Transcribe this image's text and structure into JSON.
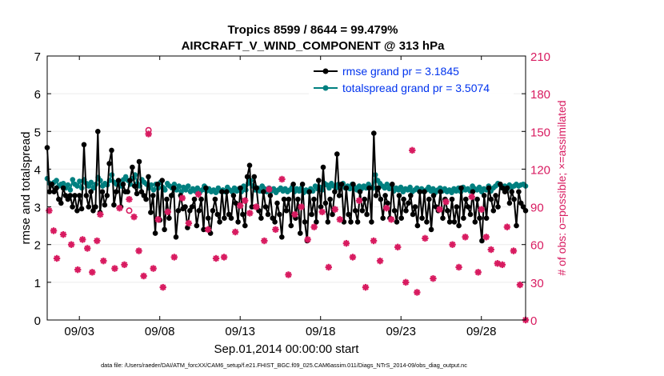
{
  "chart_data": {
    "type": "line",
    "title_line1": "Tropics 8599 / 8644 = 99.479%",
    "title_line2": "AIRCRAFT_V_WIND_COMPONENT @ 313 hPa",
    "xlabel": "Sep.01,2014 00:00:00 start",
    "ylabel_left": "rmse and totalspread",
    "ylabel_right": "# of obs: o=possible; ×=assimilated",
    "footer": "data file: /Users/raeder/DAI/ATM_forcXX/CAM6_setup/f.e21.FHIST_BGC.f09_025.CAM6assim.011/Diags_NTrS_2014-09/obs_diag_output.nc",
    "xlim": [
      1.0,
      30.75
    ],
    "ylim_left": [
      0,
      7
    ],
    "ylim_right": [
      0,
      210
    ],
    "xticks": [
      3,
      8,
      13,
      18,
      23,
      28
    ],
    "xtick_labels": [
      "09/03",
      "09/08",
      "09/13",
      "09/18",
      "09/23",
      "09/28"
    ],
    "yticks_left": [
      0,
      1,
      2,
      3,
      4,
      5,
      6,
      7
    ],
    "yticks_right": [
      0,
      30,
      60,
      90,
      120,
      150,
      180,
      210
    ],
    "colors": {
      "rmse": "#000000",
      "spread": "#008080",
      "obs": "#d81b60",
      "legend_text": "#0033ee",
      "axis": "#000000"
    },
    "legend": [
      {
        "name": "rmse grand pr = 3.1845",
        "series": "rmse"
      },
      {
        "name": "totalspread grand pr = 3.5074",
        "series": "spread"
      }
    ],
    "series": [
      {
        "name": "rmse",
        "axis": "left",
        "values": [
          4.57,
          3.4,
          3.6,
          3.4,
          3.5,
          3.2,
          3.1,
          3.5,
          3.3,
          3.2,
          3.3,
          3.0,
          3.3,
          2.9,
          3.3,
          2.95,
          4.65,
          3.3,
          3.0,
          3.4,
          2.9,
          3.0,
          5.0,
          2.85,
          3.4,
          3.05,
          3.3,
          4.15,
          4.5,
          3.05,
          3.4,
          3.7,
          3.0,
          3.6,
          3.4,
          3.4,
          3.7,
          4.05,
          3.55,
          3.35,
          4.2,
          3.4,
          3.3,
          3.2,
          3.8,
          2.85,
          3.3,
          2.3,
          3.6,
          2.65,
          3.7,
          2.4,
          3.2,
          2.7,
          3.3,
          3.5,
          2.2,
          2.9,
          3.3,
          2.95,
          3.0,
          2.45,
          2.9,
          3.0,
          3.2,
          2.5,
          2.9,
          3.2,
          2.4,
          3.5,
          2.7,
          2.3,
          2.9,
          3.2,
          2.8,
          2.6,
          3.4,
          2.7,
          3.4,
          2.8,
          2.7,
          3.3,
          3.1,
          2.6,
          3.5,
          2.8,
          2.5,
          3.8,
          4.1,
          3.0,
          3.8,
          3.5,
          2.9,
          2.7,
          3.4,
          3.0,
          2.8,
          3.3,
          2.7,
          2.6,
          3.1,
          2.8,
          2.2,
          3.2,
          2.9,
          3.2,
          2.5,
          3.6,
          2.7,
          3.2,
          2.3,
          3.6,
          2.6,
          2.1,
          3.4,
          2.8,
          3.2,
          2.6,
          3.7,
          3.0,
          4.05,
          3.1,
          2.6,
          3.2,
          2.8,
          3.4,
          4.4,
          3.3,
          3.6,
          2.6,
          3.5,
          2.8,
          2.6,
          3.6,
          2.9,
          2.6,
          3.4,
          2.9,
          3.2,
          2.8,
          3.5,
          2.6,
          4.95,
          3.3,
          3.5,
          3.2,
          2.7,
          3.3,
          3.1,
          2.7,
          3.6,
          2.9,
          2.6,
          3.3,
          2.7,
          3.2,
          2.9,
          3.1,
          3.3,
          2.8,
          3.0,
          2.5,
          3.4,
          2.7,
          3.4,
          2.6,
          3.2,
          2.4,
          3.3,
          3.0,
          2.9,
          3.4,
          2.7,
          3.2,
          2.9,
          2.6,
          3.2,
          2.6,
          3.0,
          2.5,
          3.5,
          2.7,
          3.2,
          3.0,
          2.8,
          3.4,
          2.6,
          3.2,
          2.7,
          2.1,
          3.3,
          2.7,
          3.5,
          3.2,
          2.9,
          3.3,
          3.0,
          3.6,
          3.5,
          3.4,
          3.5,
          3.1,
          3.4,
          3.2,
          2.5,
          3.4,
          3.1,
          3.0,
          2.9
        ]
      },
      {
        "name": "totalspread",
        "axis": "left",
        "values": [
          3.75,
          3.63,
          3.58,
          3.65,
          3.7,
          3.55,
          3.6,
          3.62,
          3.5,
          3.58,
          3.45,
          3.72,
          3.6,
          3.55,
          3.68,
          3.5,
          3.72,
          3.62,
          3.55,
          3.65,
          3.5,
          3.6,
          3.78,
          3.7,
          3.55,
          3.62,
          3.58,
          3.7,
          3.85,
          3.65,
          3.6,
          3.68,
          3.55,
          3.72,
          3.8,
          3.7,
          3.6,
          3.75,
          3.85,
          3.62,
          3.55,
          3.72,
          3.65,
          3.6,
          3.5,
          3.58,
          3.45,
          3.6,
          3.5,
          3.65,
          3.52,
          3.45,
          3.62,
          3.55,
          3.5,
          3.6,
          3.45,
          3.55,
          3.4,
          3.52,
          3.45,
          3.55,
          3.4,
          3.48,
          3.42,
          3.5,
          3.38,
          3.45,
          3.55,
          3.42,
          3.48,
          3.4,
          3.45,
          3.38,
          3.5,
          3.42,
          3.45,
          3.4,
          3.52,
          3.45,
          3.4,
          3.5,
          3.42,
          3.48,
          3.4,
          3.55,
          3.45,
          3.62,
          3.7,
          3.55,
          3.45,
          3.5,
          3.42,
          3.55,
          3.48,
          3.4,
          3.5,
          3.42,
          3.48,
          3.38,
          3.45,
          3.5,
          3.42,
          3.48,
          3.4,
          3.45,
          3.52,
          3.4,
          3.48,
          3.42,
          3.5,
          3.38,
          3.45,
          3.4,
          3.48,
          3.42,
          3.55,
          3.48,
          3.52,
          3.45,
          3.62,
          3.58,
          3.5,
          3.62,
          3.55,
          3.5,
          3.6,
          3.55,
          3.62,
          3.5,
          3.55,
          3.48,
          3.6,
          3.52,
          3.45,
          3.55,
          3.48,
          3.55,
          3.5,
          3.6,
          3.52,
          3.5,
          3.85,
          3.7,
          3.62,
          3.55,
          3.5,
          3.6,
          3.48,
          3.55,
          3.42,
          3.5,
          3.45,
          3.52,
          3.4,
          3.48,
          3.45,
          3.52,
          3.4,
          3.45,
          3.5,
          3.42,
          3.48,
          3.4,
          3.45,
          3.52,
          3.42,
          3.48,
          3.38,
          3.45,
          3.5,
          3.42,
          3.48,
          3.4,
          3.45,
          3.38,
          3.48,
          3.42,
          3.5,
          3.4,
          3.52,
          3.45,
          3.48,
          3.42,
          3.55,
          3.48,
          3.45,
          3.52,
          3.4,
          3.48,
          3.45,
          3.55,
          3.42,
          3.5,
          3.55,
          3.62,
          3.58,
          3.5,
          3.55,
          3.48,
          3.58,
          3.52,
          3.55,
          3.6,
          3.55,
          3.58,
          3.6,
          3.55
        ]
      }
    ],
    "obs_assimilated": {
      "axis": "right",
      "points": [
        [
          1.12,
          87
        ],
        [
          1.4,
          71
        ],
        [
          1.6,
          49
        ],
        [
          2.0,
          68
        ],
        [
          2.5,
          60
        ],
        [
          2.9,
          40
        ],
        [
          3.2,
          64
        ],
        [
          3.5,
          57
        ],
        [
          3.8,
          38
        ],
        [
          4.1,
          63
        ],
        [
          4.3,
          84
        ],
        [
          4.5,
          47
        ],
        [
          5.2,
          41
        ],
        [
          5.5,
          89
        ],
        [
          5.8,
          44
        ],
        [
          6.1,
          96
        ],
        [
          6.4,
          82
        ],
        [
          6.7,
          55
        ],
        [
          7.0,
          35
        ],
        [
          7.3,
          148
        ],
        [
          7.6,
          41
        ],
        [
          7.9,
          80
        ],
        [
          8.2,
          26
        ],
        [
          8.5,
          86
        ],
        [
          8.9,
          50
        ],
        [
          9.4,
          97
        ],
        [
          9.8,
          77
        ],
        [
          10.4,
          100
        ],
        [
          11.0,
          72
        ],
        [
          11.5,
          49
        ],
        [
          12.0,
          50
        ],
        [
          12.7,
          70
        ],
        [
          13.0,
          91
        ],
        [
          13.3,
          95
        ],
        [
          13.6,
          85
        ],
        [
          14.0,
          90
        ],
        [
          14.5,
          63
        ],
        [
          14.8,
          104
        ],
        [
          15.2,
          72
        ],
        [
          15.6,
          112
        ],
        [
          16.0,
          36
        ],
        [
          16.4,
          84
        ],
        [
          16.8,
          90
        ],
        [
          17.2,
          64
        ],
        [
          17.6,
          74
        ],
        [
          18.1,
          86
        ],
        [
          18.5,
          42
        ],
        [
          18.9,
          88
        ],
        [
          19.2,
          80
        ],
        [
          19.6,
          61
        ],
        [
          20.0,
          50
        ],
        [
          20.4,
          95
        ],
        [
          20.8,
          26
        ],
        [
          21.3,
          63
        ],
        [
          21.7,
          47
        ],
        [
          22.1,
          89
        ],
        [
          22.4,
          80
        ],
        [
          22.8,
          58
        ],
        [
          23.3,
          30
        ],
        [
          23.7,
          135
        ],
        [
          24.0,
          22
        ],
        [
          24.5,
          65
        ],
        [
          25.0,
          33
        ],
        [
          25.4,
          88
        ],
        [
          25.8,
          94
        ],
        [
          26.2,
          60
        ],
        [
          26.6,
          42
        ],
        [
          27.0,
          66
        ],
        [
          27.4,
          98
        ],
        [
          27.8,
          38
        ],
        [
          28.0,
          88
        ],
        [
          28.3,
          66
        ],
        [
          28.6,
          56
        ],
        [
          29.0,
          45
        ],
        [
          29.3,
          44
        ],
        [
          29.6,
          74
        ],
        [
          30.0,
          55
        ],
        [
          30.4,
          28
        ],
        [
          30.75,
          0
        ]
      ]
    },
    "obs_possible": {
      "axis": "right",
      "points": [
        [
          6.1,
          87
        ],
        [
          7.3,
          151
        ]
      ]
    }
  }
}
